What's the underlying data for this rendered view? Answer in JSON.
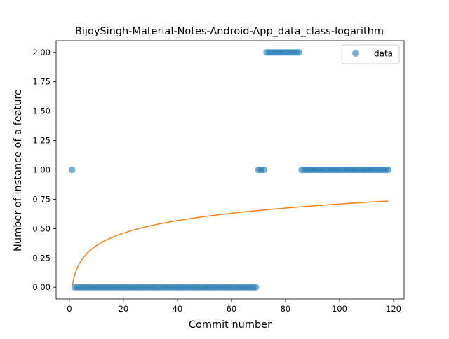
{
  "chart_data": {
    "type": "scatter",
    "title": "BijoySingh-Material-Notes-Android-App_data_class-logarithm",
    "xlabel": "Commit number",
    "ylabel": "Number of instance of a feature",
    "xlim": [
      -4.9,
      123.9
    ],
    "ylim": [
      -0.1,
      2.1
    ],
    "xticks": [
      0,
      20,
      40,
      60,
      80,
      100,
      120
    ],
    "yticks": [
      0.0,
      0.25,
      0.5,
      0.75,
      1.0,
      1.25,
      1.5,
      1.75,
      2.0
    ],
    "ytick_labels": [
      "0.00",
      "0.25",
      "0.50",
      "0.75",
      "1.00",
      "1.25",
      "1.50",
      "1.75",
      "2.00"
    ],
    "grid": false,
    "legend_position": "upper right",
    "series": [
      {
        "name": "data",
        "kind": "scatter",
        "color": "#1f77b4",
        "x": [
          1,
          2,
          3,
          4,
          5,
          6,
          7,
          8,
          9,
          10,
          11,
          12,
          13,
          14,
          15,
          16,
          17,
          18,
          19,
          20,
          21,
          22,
          23,
          24,
          25,
          26,
          27,
          28,
          29,
          30,
          31,
          32,
          33,
          34,
          35,
          36,
          37,
          38,
          39,
          40,
          41,
          42,
          43,
          44,
          45,
          46,
          47,
          48,
          49,
          50,
          51,
          52,
          53,
          54,
          55,
          56,
          57,
          58,
          59,
          60,
          61,
          62,
          63,
          64,
          65,
          66,
          67,
          68,
          69,
          70,
          71,
          72,
          73,
          74,
          75,
          76,
          77,
          78,
          79,
          80,
          81,
          82,
          83,
          84,
          85,
          86,
          87,
          88,
          89,
          90,
          91,
          92,
          93,
          94,
          95,
          96,
          97,
          98,
          99,
          100,
          101,
          102,
          103,
          104,
          105,
          106,
          107,
          108,
          109,
          110,
          111,
          112,
          113,
          114,
          115,
          116,
          117,
          118
        ],
        "y": [
          1,
          0,
          0,
          0,
          0,
          0,
          0,
          0,
          0,
          0,
          0,
          0,
          0,
          0,
          0,
          0,
          0,
          0,
          0,
          0,
          0,
          0,
          0,
          0,
          0,
          0,
          0,
          0,
          0,
          0,
          0,
          0,
          0,
          0,
          0,
          0,
          0,
          0,
          0,
          0,
          0,
          0,
          0,
          0,
          0,
          0,
          0,
          0,
          0,
          0,
          0,
          0,
          0,
          0,
          0,
          0,
          0,
          0,
          0,
          0,
          0,
          0,
          0,
          0,
          0,
          0,
          0,
          0,
          0,
          1,
          1,
          1,
          2,
          2,
          2,
          2,
          2,
          2,
          2,
          2,
          2,
          2,
          2,
          2,
          2,
          1,
          1,
          1,
          1,
          1,
          1,
          1,
          1,
          1,
          1,
          1,
          1,
          1,
          1,
          1,
          1,
          1,
          1,
          1,
          1,
          1,
          1,
          1,
          1,
          1,
          1,
          1,
          1,
          1,
          1,
          1,
          1,
          1
        ]
      },
      {
        "kind": "line",
        "color": "#ff7f0e",
        "function": "a*ln(x)",
        "a": 0.154,
        "x_range": [
          1,
          118
        ]
      }
    ]
  }
}
